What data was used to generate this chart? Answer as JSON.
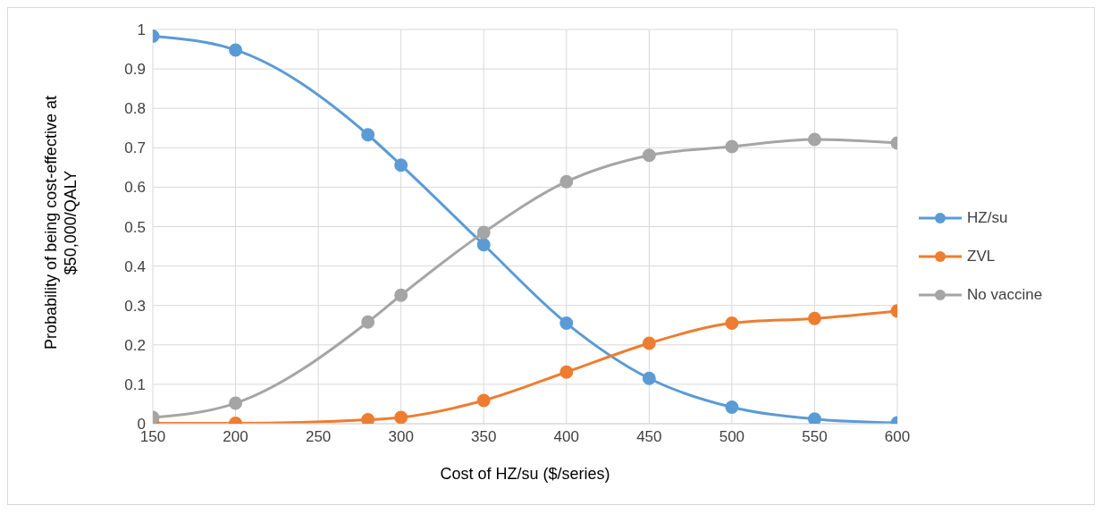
{
  "chart_data": {
    "type": "line",
    "xlabel": "Cost of HZ/su ($/series)",
    "ylabel": "Probability of being cost-effective at $50,000/QALY",
    "x": [
      150,
      200,
      280,
      300,
      350,
      400,
      450,
      500,
      550,
      600
    ],
    "series": [
      {
        "name": "HZ/su",
        "color": "#5b9bd5",
        "values": [
          0.983,
          0.948,
          0.733,
          0.656,
          0.454,
          0.255,
          0.115,
          0.042,
          0.012,
          0.002
        ]
      },
      {
        "name": "ZVL",
        "color": "#ed7d31",
        "values": [
          0.001,
          0.001,
          0.01,
          0.016,
          0.059,
          0.131,
          0.204,
          0.255,
          0.267,
          0.286
        ]
      },
      {
        "name": "No vaccine",
        "color": "#a5a5a5",
        "values": [
          0.016,
          0.052,
          0.258,
          0.326,
          0.485,
          0.614,
          0.681,
          0.703,
          0.721,
          0.712
        ]
      }
    ],
    "xlim": [
      150,
      600
    ],
    "xticks": [
      150,
      200,
      250,
      300,
      350,
      400,
      450,
      500,
      550,
      600
    ],
    "ylim": [
      0,
      1
    ],
    "yticks": [
      0,
      0.1,
      0.2,
      0.3,
      0.4,
      0.5,
      0.6,
      0.7,
      0.8,
      0.9,
      1
    ],
    "grid": true,
    "legend": "right",
    "marker": "circle",
    "line_style": "solid"
  }
}
